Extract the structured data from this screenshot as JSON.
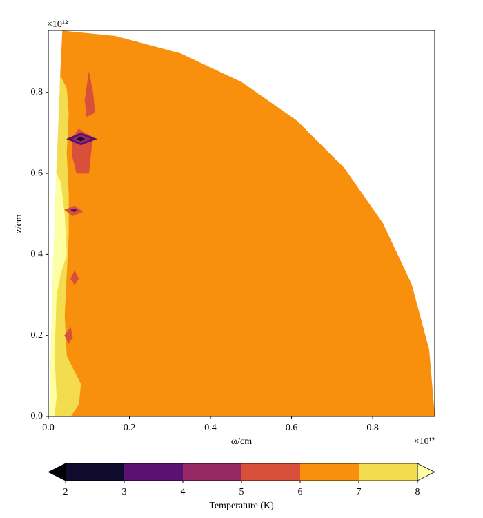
{
  "chart_data": {
    "type": "contour",
    "xlabel": "ω/cm",
    "ylabel": "z/cm",
    "x_offset_label": "×10¹²",
    "y_offset_label": "×10¹²",
    "xlim": [
      0,
      0.953
    ],
    "ylim": [
      0,
      0.953
    ],
    "xticks": [
      {
        "value": 0,
        "label": "0.0"
      },
      0.2,
      0.4,
      0.6,
      0.8
    ],
    "yticks": [
      {
        "value": 0,
        "label": "0.0"
      },
      0.2,
      0.4,
      0.6,
      0.8
    ],
    "regions": [
      {
        "level": 6,
        "x": [
          0.035,
          0.165,
          0.326,
          0.477,
          0.613,
          0.73,
          0.825,
          0.896,
          0.939,
          0.953,
          0.005,
          0.02,
          0.03
        ],
        "y": [
          0.952,
          0.939,
          0.896,
          0.825,
          0.73,
          0.613,
          0.477,
          0.326,
          0.165,
          0,
          0,
          0.5,
          0.85
        ]
      },
      {
        "level": 7,
        "x": [
          0.03,
          0.045,
          0.05,
          0.045,
          0.05,
          0.05,
          0.045,
          0.04,
          0.045,
          0.07,
          0.08,
          0.075,
          0.055,
          0.003,
          0.01,
          0.02
        ],
        "y": [
          0.84,
          0.81,
          0.75,
          0.65,
          0.55,
          0.45,
          0.35,
          0.25,
          0.15,
          0.1,
          0.08,
          0.03,
          0,
          0,
          0.3,
          0.6
        ]
      },
      {
        "level": 8,
        "x": [
          0.02,
          0.03,
          0.04,
          0.045,
          0.03,
          0.02,
          0.015,
          0.02,
          0.015,
          0.003,
          0.01
        ],
        "y": [
          0.6,
          0.58,
          0.5,
          0.4,
          0.35,
          0.3,
          0.15,
          0.05,
          0,
          0,
          0.3
        ]
      },
      {
        "level": 5,
        "x": [
          0.1,
          0.11,
          0.115,
          0.095,
          0.09
        ],
        "y": [
          0.85,
          0.8,
          0.75,
          0.74,
          0.78
        ]
      },
      {
        "level": 5,
        "x": [
          0.06,
          0.075,
          0.09,
          0.11,
          0.105,
          0.1,
          0.07,
          0.06
        ],
        "y": [
          0.69,
          0.71,
          0.7,
          0.69,
          0.65,
          0.6,
          0.6,
          0.64
        ]
      },
      {
        "level": 3,
        "x": [
          0.045,
          0.08,
          0.12,
          0.08
        ],
        "y": [
          0.685,
          0.7,
          0.685,
          0.67
        ]
      },
      {
        "level": 4,
        "x": [
          0.06,
          0.08,
          0.105,
          0.08
        ],
        "y": [
          0.685,
          0.695,
          0.685,
          0.675
        ]
      },
      {
        "level": 2,
        "x": [
          0.07,
          0.08,
          0.09,
          0.08
        ],
        "y": [
          0.685,
          0.69,
          0.685,
          0.68
        ]
      },
      {
        "level": 5,
        "x": [
          0.04,
          0.065,
          0.085,
          0.06
        ],
        "y": [
          0.51,
          0.52,
          0.505,
          0.495
        ]
      },
      {
        "level": 3,
        "x": [
          0.055,
          0.065,
          0.072,
          0.063
        ],
        "y": [
          0.51,
          0.513,
          0.508,
          0.505
        ]
      },
      {
        "level": 5,
        "x": [
          0.055,
          0.065,
          0.075,
          0.065
        ],
        "y": [
          0.34,
          0.36,
          0.34,
          0.325
        ]
      },
      {
        "level": 5,
        "x": [
          0.04,
          0.055,
          0.06,
          0.05
        ],
        "y": [
          0.2,
          0.22,
          0.195,
          0.18
        ]
      }
    ],
    "colorbar": {
      "label": "Temperature (K)",
      "levels": [
        2,
        3,
        4,
        5,
        6,
        7,
        8
      ],
      "colors": [
        "#000004",
        "#120b30",
        "#5a1172",
        "#982766",
        "#d9503a",
        "#f8900e",
        "#f3dd4f",
        "#fcffa4"
      ]
    }
  }
}
